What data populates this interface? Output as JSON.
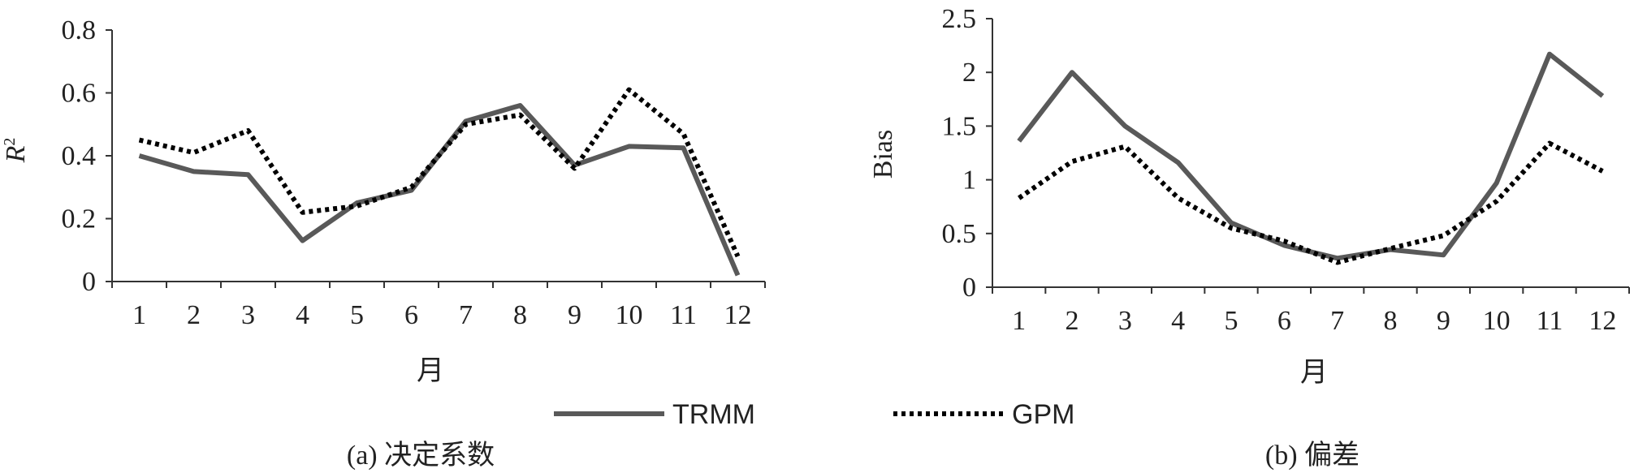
{
  "legend": {
    "items": [
      {
        "label": "TRMM",
        "color": "#595959",
        "style": "solid"
      },
      {
        "label": "GPM",
        "color": "#000000",
        "style": "dotted"
      }
    ]
  },
  "chart_data": [
    {
      "type": "line",
      "caption": "(a) 决定系数",
      "xlabel": "月",
      "ylabel": "R²",
      "ylabel_main": "R",
      "ylabel_sup": "2",
      "categories": [
        "1",
        "2",
        "3",
        "4",
        "5",
        "6",
        "7",
        "8",
        "9",
        "10",
        "11",
        "12"
      ],
      "ylim": [
        0,
        0.8
      ],
      "yticks": [
        0,
        0.2,
        0.4,
        0.6,
        0.8
      ],
      "ytick_labels": [
        "0",
        "0.2",
        "0.4",
        "0.6",
        "0.8"
      ],
      "grid": false,
      "series": [
        {
          "name": "TRMM",
          "values": [
            0.4,
            0.35,
            0.34,
            0.13,
            0.25,
            0.29,
            0.51,
            0.56,
            0.37,
            0.43,
            0.425,
            0.02
          ]
        },
        {
          "name": "GPM",
          "values": [
            0.45,
            0.41,
            0.48,
            0.22,
            0.24,
            0.3,
            0.5,
            0.53,
            0.36,
            0.61,
            0.47,
            0.08
          ]
        }
      ]
    },
    {
      "type": "line",
      "caption": "(b) 偏差",
      "xlabel": "月",
      "ylabel": "Bias",
      "categories": [
        "1",
        "2",
        "3",
        "4",
        "5",
        "6",
        "7",
        "8",
        "9",
        "10",
        "11",
        "12"
      ],
      "ylim": [
        0,
        2.5
      ],
      "yticks": [
        0,
        0.5,
        1,
        1.5,
        2,
        2.5
      ],
      "ytick_labels": [
        "0",
        "0.5",
        "1",
        "1.5",
        "2",
        "2.5"
      ],
      "grid": false,
      "series": [
        {
          "name": "TRMM",
          "values": [
            1.36,
            2.0,
            1.5,
            1.16,
            0.6,
            0.39,
            0.27,
            0.35,
            0.3,
            0.97,
            2.17,
            1.78
          ]
        },
        {
          "name": "GPM",
          "values": [
            0.83,
            1.17,
            1.31,
            0.83,
            0.55,
            0.43,
            0.23,
            0.36,
            0.48,
            0.8,
            1.34,
            1.08
          ]
        }
      ]
    }
  ]
}
